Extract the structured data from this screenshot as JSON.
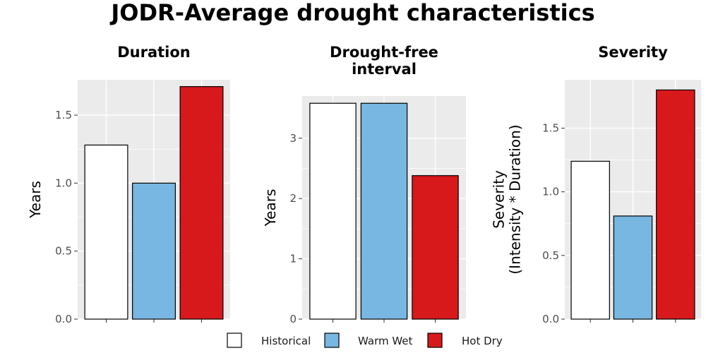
{
  "title": "JODR-Average drought characteristics",
  "colors": {
    "Historical": "#ffffff",
    "Warm Wet": "#77b7e1",
    "Hot Dry": "#d7191c",
    "panel_bg": "#ebebeb",
    "grid": "#ffffff"
  },
  "legend": {
    "items": [
      "Historical",
      "Warm Wet",
      "Hot Dry"
    ],
    "position": "bottom"
  },
  "chart_data": [
    {
      "type": "bar",
      "title": [
        "Duration"
      ],
      "ylabel": [
        "Years"
      ],
      "categories": [
        "Historical",
        "Warm Wet",
        "Hot Dry"
      ],
      "values": [
        1.28,
        1.0,
        1.71
      ],
      "ylim": [
        0,
        1.76
      ],
      "yticks": [
        0,
        0.5,
        1.0,
        1.5
      ],
      "ytick_labels": [
        "0.0",
        "0.5",
        "1.0",
        "1.5"
      ],
      "grid": true
    },
    {
      "type": "bar",
      "title": [
        "Drought-free",
        "interval"
      ],
      "ylabel": [
        "Years"
      ],
      "categories": [
        "Historical",
        "Warm Wet",
        "Hot Dry"
      ],
      "values": [
        3.58,
        3.58,
        2.38
      ],
      "ylim": [
        0,
        3.7
      ],
      "yticks": [
        0,
        1,
        2,
        3
      ],
      "ytick_labels": [
        "0",
        "1",
        "2",
        "3"
      ],
      "grid": true
    },
    {
      "type": "bar",
      "title": [
        "Severity"
      ],
      "ylabel": [
        "Severity",
        "(Intensity * Duration)"
      ],
      "categories": [
        "Historical",
        "Warm Wet",
        "Hot Dry"
      ],
      "values": [
        1.24,
        0.81,
        1.8
      ],
      "ylim": [
        0,
        1.88
      ],
      "yticks": [
        0,
        0.5,
        1.0,
        1.5
      ],
      "ytick_labels": [
        "0.0",
        "0.5",
        "1.0",
        "1.5"
      ],
      "grid": true
    }
  ]
}
